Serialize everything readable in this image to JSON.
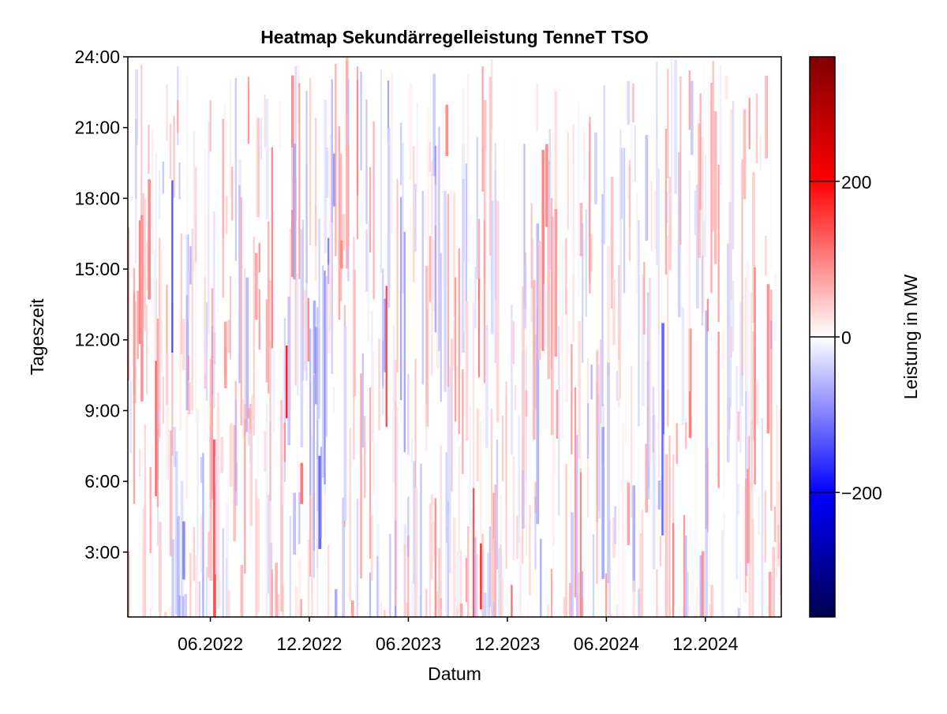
{
  "chart_data": {
    "type": "heatmap",
    "title": "Heatmap Sekundärregelleistung TenneT TSO",
    "xlabel": "Datum",
    "ylabel": "Tageszeit",
    "x_range": [
      "2022-01",
      "2025-04"
    ],
    "x_ticks": [
      "06.2022",
      "12.2022",
      "06.2023",
      "12.2023",
      "06.2024",
      "12.2024"
    ],
    "y_range": [
      "0:15",
      "24:00"
    ],
    "y_ticks": [
      "3:00",
      "6:00",
      "9:00",
      "12:00",
      "15:00",
      "18:00",
      "21:00",
      "24:00"
    ],
    "colorbar": {
      "label": "Leistung in MW",
      "range": [
        -360,
        360
      ],
      "ticks": [
        -200,
        0,
        200
      ],
      "tick_labels": [
        "−200",
        "0",
        "200"
      ],
      "colormap": [
        "#000050",
        "#0000ff",
        "#ffffff",
        "#ff0000",
        "#800000"
      ]
    },
    "grid": false,
    "values_note": ""
  }
}
